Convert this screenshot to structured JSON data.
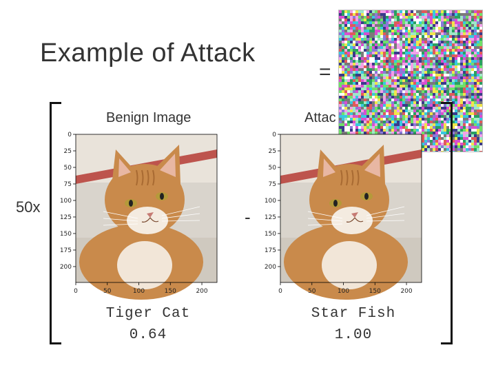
{
  "slide": {
    "title": "Example of Attack",
    "equals": "=",
    "minus": "-",
    "factor": "50x"
  },
  "benign": {
    "heading": "Benign Image",
    "label": "Tiger Cat",
    "score": "0.64"
  },
  "attack": {
    "heading": "Attac",
    "label": "Star Fish",
    "score": "1.00"
  },
  "axes": {
    "y_ticks": [
      "0",
      "25",
      "50",
      "75",
      "100",
      "125",
      "150",
      "175",
      "200"
    ],
    "x_ticks": [
      "0",
      "50",
      "100",
      "150",
      "200"
    ]
  },
  "colors": {
    "text": "#333333",
    "bracket": "#111111",
    "cat_fur": "#c98a4b",
    "background_stripe": "#b8443d"
  }
}
